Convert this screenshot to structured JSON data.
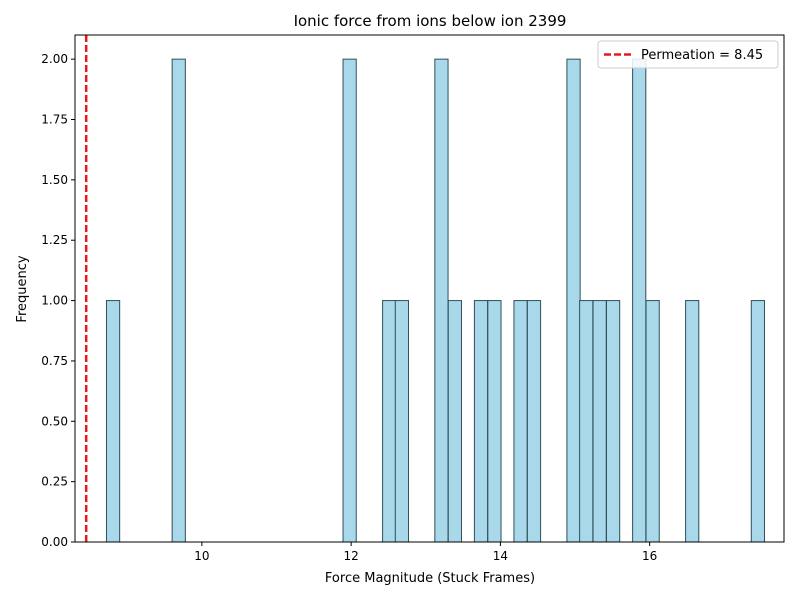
{
  "chart_data": {
    "type": "bar",
    "title": "Ionic force from ions below ion 2399",
    "xlabel": "Force Magnitude (Stuck Frames)",
    "ylabel": "Frequency",
    "xlim": [
      8.3,
      17.8
    ],
    "ylim": [
      0,
      2.1
    ],
    "bin_width": 0.177,
    "bars": [
      {
        "x": 8.81,
        "value": 1
      },
      {
        "x": 9.69,
        "value": 2
      },
      {
        "x": 11.98,
        "value": 2
      },
      {
        "x": 12.51,
        "value": 1
      },
      {
        "x": 12.68,
        "value": 1
      },
      {
        "x": 13.21,
        "value": 2
      },
      {
        "x": 13.39,
        "value": 1
      },
      {
        "x": 13.74,
        "value": 1
      },
      {
        "x": 13.92,
        "value": 1
      },
      {
        "x": 14.27,
        "value": 1
      },
      {
        "x": 14.45,
        "value": 1
      },
      {
        "x": 14.98,
        "value": 2
      },
      {
        "x": 15.15,
        "value": 1
      },
      {
        "x": 15.33,
        "value": 1
      },
      {
        "x": 15.51,
        "value": 1
      },
      {
        "x": 15.86,
        "value": 2
      },
      {
        "x": 16.04,
        "value": 1
      },
      {
        "x": 16.57,
        "value": 1
      },
      {
        "x": 17.45,
        "value": 1
      }
    ],
    "xticks": [
      {
        "value": 10,
        "label": "10"
      },
      {
        "value": 12,
        "label": "12"
      },
      {
        "value": 14,
        "label": "14"
      },
      {
        "value": 16,
        "label": "16"
      }
    ],
    "yticks": [
      {
        "value": 0,
        "label": "0.00"
      },
      {
        "value": 0.25,
        "label": "0.25"
      },
      {
        "value": 0.5,
        "label": "0.50"
      },
      {
        "value": 0.75,
        "label": "0.75"
      },
      {
        "value": 1.0,
        "label": "1.00"
      },
      {
        "value": 1.25,
        "label": "1.25"
      },
      {
        "value": 1.5,
        "label": "1.50"
      },
      {
        "value": 1.75,
        "label": "1.75"
      },
      {
        "value": 2.0,
        "label": "2.00"
      }
    ],
    "threshold_line": {
      "x": 8.45,
      "label": "Permeation = 8.45",
      "color": "#e41a1c"
    },
    "bar_color": "#a8d8ea",
    "bar_edge_color": "#2f4f5a",
    "grid": false,
    "legend_position": "top-right"
  }
}
